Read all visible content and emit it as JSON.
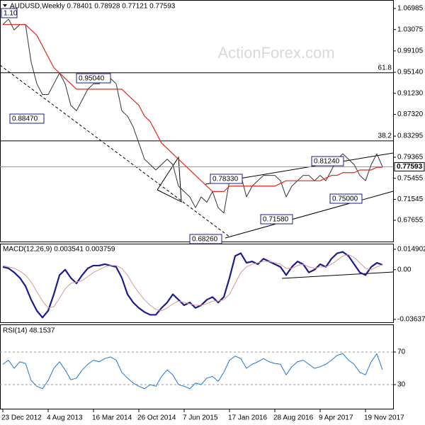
{
  "chart_data": [
    {
      "type": "line",
      "title": "AUDUSD,Weekly 0.78401 0.78928 0.77121 0.77593",
      "watermark": "ActionForex.com",
      "series": [
        {
          "color": "#333333",
          "values": [
            1.04,
            1.05,
            1.03,
            1.04,
            1.04,
            0.97,
            0.93,
            0.91,
            0.91,
            0.93,
            0.95,
            0.93,
            0.89,
            0.88,
            0.9,
            0.92,
            0.93,
            0.93,
            0.94,
            0.94,
            0.93,
            0.88,
            0.87,
            0.85,
            0.82,
            0.79,
            0.78,
            0.77,
            0.78,
            0.79,
            0.78,
            0.74,
            0.73,
            0.72,
            0.7,
            0.72,
            0.71,
            0.73,
            0.7,
            0.69,
            0.75,
            0.76,
            0.76,
            0.72,
            0.74,
            0.75,
            0.76,
            0.76,
            0.76,
            0.75,
            0.72,
            0.74,
            0.75,
            0.76,
            0.76,
            0.75,
            0.76,
            0.75,
            0.77,
            0.79,
            0.8,
            0.79,
            0.78,
            0.76,
            0.75,
            0.78,
            0.8,
            0.77593
          ]
        },
        {
          "color": "#e0281e",
          "values": [
            1.04,
            1.04,
            1.04,
            1.04,
            1.04,
            1.03,
            1.02,
            1.0,
            0.98,
            0.96,
            0.95,
            0.94,
            0.93,
            0.92,
            0.92,
            0.92,
            0.92,
            0.92,
            0.92,
            0.92,
            0.92,
            0.92,
            0.91,
            0.9,
            0.89,
            0.87,
            0.86,
            0.84,
            0.82,
            0.81,
            0.8,
            0.79,
            0.78,
            0.77,
            0.76,
            0.75,
            0.74,
            0.73,
            0.73,
            0.73,
            0.74,
            0.74,
            0.74,
            0.74,
            0.74,
            0.74,
            0.74,
            0.74,
            0.74,
            0.745,
            0.75,
            0.75,
            0.75,
            0.75,
            0.75,
            0.75,
            0.75,
            0.755,
            0.76,
            0.76,
            0.765,
            0.765,
            0.765,
            0.77,
            0.77,
            0.77,
            0.775,
            0.775
          ]
        }
      ],
      "last_value": 0.77593,
      "fib_levels": [
        {
          "name": "61.8",
          "value": 0.9504
        },
        {
          "name": "38.2",
          "value": 0.824
        }
      ],
      "annotations": [
        "1.10",
        "0.95040",
        "0.88470",
        "0.78330",
        "0.81240",
        "0.75000",
        "0.71580",
        "0.68260"
      ],
      "ylim": [
        0.6358,
        1.0856
      ],
      "yticks": [
        1.06985,
        1.03075,
        0.99105,
        {
          "value": 0.9514,
          "label": "0.95140"
        },
        {
          "value": 0.9123,
          "label": "0.91230"
        },
        {
          "value": 0.8732,
          "label": "0.87320"
        },
        0.83295,
        0.79365,
        0.75455,
        0.71545,
        0.67655
      ]
    },
    {
      "type": "line",
      "title": "MACD(12,26,9) 0.003541 0.003759",
      "series": [
        {
          "color": "#1c1c8c",
          "values": [
            0.002,
            0.001,
            -0.002,
            -0.006,
            -0.012,
            -0.022,
            -0.03,
            -0.035,
            -0.03,
            -0.018,
            -0.004,
            0.0,
            -0.006,
            -0.01,
            -0.004,
            0.001,
            0.003,
            0.003,
            0.004,
            0.003,
            0.002,
            -0.006,
            -0.018,
            -0.024,
            -0.028,
            -0.031,
            -0.033,
            -0.033,
            -0.028,
            -0.024,
            -0.018,
            -0.022,
            -0.026,
            -0.024,
            -0.028,
            -0.026,
            -0.022,
            -0.02,
            -0.024,
            -0.02,
            -0.006,
            0.01,
            0.012,
            0.005,
            0.006,
            0.004,
            0.008,
            0.006,
            0.004,
            0.002,
            -0.004,
            0.002,
            0.006,
            0.004,
            -0.002,
            0.0,
            0.004,
            0.002,
            0.008,
            0.012,
            0.013,
            0.01,
            0.004,
            -0.002,
            -0.004,
            0.002,
            0.005,
            0.003541
          ]
        },
        {
          "color": "#d49a9a",
          "values": [
            0.003,
            0.002,
            0.001,
            -0.001,
            -0.004,
            -0.009,
            -0.016,
            -0.023,
            -0.028,
            -0.027,
            -0.021,
            -0.014,
            -0.01,
            -0.009,
            -0.008,
            -0.005,
            -0.002,
            0.0,
            0.002,
            0.003,
            0.003,
            0.001,
            -0.004,
            -0.011,
            -0.017,
            -0.022,
            -0.026,
            -0.029,
            -0.03,
            -0.028,
            -0.025,
            -0.023,
            -0.024,
            -0.025,
            -0.026,
            -0.026,
            -0.025,
            -0.023,
            -0.023,
            -0.022,
            -0.018,
            -0.01,
            -0.002,
            0.002,
            0.004,
            0.005,
            0.006,
            0.006,
            0.005,
            0.004,
            0.001,
            0.001,
            0.003,
            0.004,
            0.002,
            0.001,
            0.002,
            0.002,
            0.004,
            0.007,
            0.01,
            0.011,
            0.009,
            0.005,
            0.001,
            0.0,
            0.002,
            0.003759
          ]
        }
      ],
      "ylim": [
        -0.039,
        0.0185
      ],
      "yticks": [
        0.014902,
        {
          "value": 0,
          "label": "0.00"
        },
        -0.036374
      ]
    },
    {
      "type": "line",
      "title": "RSI(14) 48.1537",
      "categories": [
        "23 Dec 2012",
        null,
        null,
        null,
        null,
        null,
        null,
        null,
        "4 Aug 2013",
        null,
        null,
        null,
        null,
        null,
        null,
        null,
        "16 Mar 2014",
        null,
        null,
        null,
        null,
        null,
        null,
        null,
        "26 Oct 2014",
        null,
        null,
        null,
        null,
        null,
        null,
        null,
        "7 Jun 2015",
        null,
        null,
        null,
        null,
        null,
        null,
        null,
        "17 Jan 2016",
        null,
        null,
        null,
        null,
        null,
        null,
        null,
        "28 Aug 2016",
        null,
        null,
        null,
        null,
        null,
        null,
        null,
        "9 Apr 2017",
        null,
        null,
        null,
        null,
        null,
        null,
        null,
        "19 Nov 2017",
        null,
        null,
        null
      ],
      "series": [
        {
          "color": "#1e78d2",
          "values": [
            55,
            60,
            50,
            58,
            56,
            35,
            28,
            25,
            35,
            50,
            58,
            48,
            36,
            38,
            48,
            55,
            60,
            58,
            62,
            64,
            60,
            45,
            38,
            32,
            28,
            25,
            30,
            28,
            40,
            48,
            42,
            30,
            28,
            25,
            32,
            30,
            38,
            40,
            34,
            45,
            60,
            65,
            62,
            50,
            55,
            58,
            62,
            58,
            56,
            55,
            42,
            52,
            58,
            60,
            55,
            50,
            52,
            55,
            60,
            66,
            68,
            60,
            55,
            45,
            42,
            58,
            68,
            48.1537
          ]
        }
      ],
      "ylim": [
        -0.4,
        103
      ],
      "yticks": [
        70,
        30
      ],
      "grid": true
    }
  ]
}
